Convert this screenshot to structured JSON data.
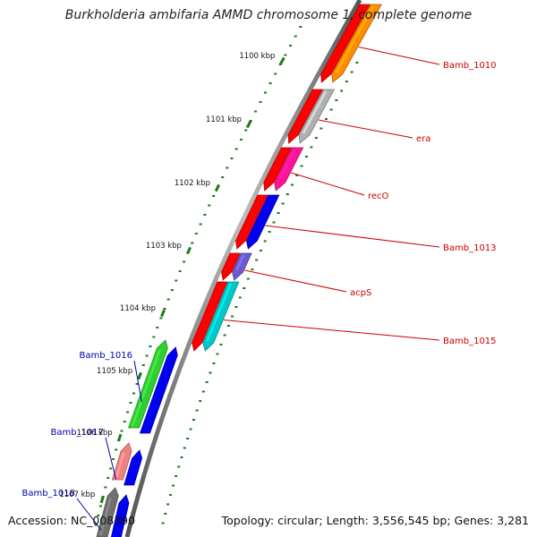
{
  "title": "Burkholderia ambifaria AMMD chromosome 1, complete genome",
  "footer": {
    "accession": "Accession: NC_008390",
    "summary": "Topology: circular; Length: 3,556,545 bp; Genes: 3,281"
  },
  "ruler": {
    "ticks": [
      "1100 kbp",
      "1101 kbp",
      "1102 kbp",
      "1103 kbp",
      "1104 kbp",
      "1105 kbp",
      "1106 kbp",
      "1107 kbp"
    ],
    "tick_color": "#1a7a1a"
  },
  "genes": [
    {
      "name": "Bamb_1010",
      "strand": "reverse",
      "color": "#ff8c00"
    },
    {
      "name": "era",
      "strand": "reverse",
      "color": "#b0b0b0"
    },
    {
      "name": "recO",
      "strand": "reverse",
      "color": "#ff1493"
    },
    {
      "name": "Bamb_1013",
      "strand": "reverse",
      "color": "#0000ee"
    },
    {
      "name": "acpS",
      "strand": "reverse",
      "color": "#6a5acd"
    },
    {
      "name": "Bamb_1015",
      "strand": "reverse",
      "color": "#00c8c8"
    },
    {
      "name": "Bamb_1016",
      "strand": "forward",
      "color": "#32cd32"
    },
    {
      "name": "Bamb_1017",
      "strand": "forward",
      "color": "#f08080"
    },
    {
      "name": "Bamb_1018",
      "strand": "forward",
      "color": "#707070"
    }
  ],
  "cds_color": "#ff0000",
  "forward_cds_color": "#0000ee",
  "label_colors": {
    "reverse": "#cc0000",
    "forward": "#0000aa"
  }
}
